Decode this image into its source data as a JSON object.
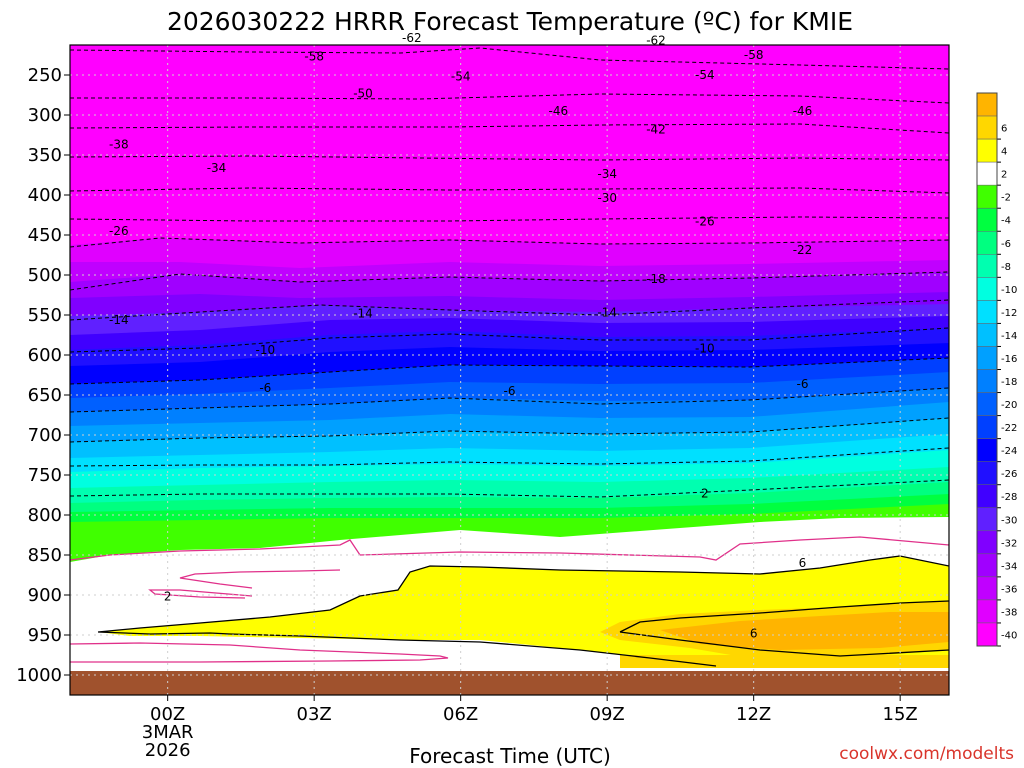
{
  "chart_data": {
    "type": "heatmap",
    "title": "2026030222 HRRR Forecast Temperature (ºC) for KMIE",
    "xlabel": "Forecast Time (UTC)",
    "ylabel": "",
    "credit": "coolwx.com/modelts",
    "x_ticks": [
      {
        "hour": 0,
        "label": "00Z",
        "sub": [
          "3MAR",
          "2026"
        ]
      },
      {
        "hour": 3,
        "label": "03Z"
      },
      {
        "hour": 6,
        "label": "06Z"
      },
      {
        "hour": 9,
        "label": "09Z"
      },
      {
        "hour": 12,
        "label": "12Z"
      },
      {
        "hour": 15,
        "label": "15Z"
      }
    ],
    "xlim": [
      -2,
      16
    ],
    "ylim": [
      1040,
      200
    ],
    "y_scale": "log-pressure",
    "y_ticks": [
      250,
      300,
      350,
      400,
      450,
      500,
      550,
      600,
      650,
      700,
      750,
      800,
      850,
      900,
      950,
      1000
    ],
    "color_levels": [
      {
        "label": "-40",
        "min": -99,
        "max": -40,
        "color": "#ff00ff"
      },
      {
        "label": "-38",
        "min": -40,
        "max": -38,
        "color": "#e000ff"
      },
      {
        "label": "-36",
        "min": -38,
        "max": -36,
        "color": "#c000ff"
      },
      {
        "label": "-34",
        "min": -36,
        "max": -34,
        "color": "#a000ff"
      },
      {
        "label": "-32",
        "min": -34,
        "max": -32,
        "color": "#8000ff"
      },
      {
        "label": "-30",
        "min": -32,
        "max": -30,
        "color": "#6020ff"
      },
      {
        "label": "-28",
        "min": -30,
        "max": -28,
        "color": "#4000ff"
      },
      {
        "label": "-26",
        "min": -28,
        "max": -26,
        "color": "#2010ff"
      },
      {
        "label": "-24",
        "min": -26,
        "max": -24,
        "color": "#0000ff"
      },
      {
        "label": "-22",
        "min": -24,
        "max": -22,
        "color": "#0040ff"
      },
      {
        "label": "-20",
        "min": -22,
        "max": -20,
        "color": "#0060ff"
      },
      {
        "label": "-18",
        "min": -20,
        "max": -18,
        "color": "#0080ff"
      },
      {
        "label": "-16",
        "min": -18,
        "max": -16,
        "color": "#00a0ff"
      },
      {
        "label": "-14",
        "min": -16,
        "max": -14,
        "color": "#00c0ff"
      },
      {
        "label": "-12",
        "min": -14,
        "max": -12,
        "color": "#00e0ff"
      },
      {
        "label": "-10",
        "min": -12,
        "max": -10,
        "color": "#00ffe0"
      },
      {
        "label": "-8",
        "min": -10,
        "max": -8,
        "color": "#00ffb0"
      },
      {
        "label": "-6",
        "min": -8,
        "max": -6,
        "color": "#00ff80"
      },
      {
        "label": "-4",
        "min": -6,
        "max": -4,
        "color": "#00ff40"
      },
      {
        "label": "-2",
        "min": -4,
        "max": -2,
        "color": "#40ff00"
      },
      {
        "label": "2",
        "min": -2,
        "max": 2,
        "color": "#ffffff"
      },
      {
        "label": "4",
        "min": 2,
        "max": 4,
        "color": "#ffff00"
      },
      {
        "label": "6",
        "min": 4,
        "max": 6,
        "color": "#ffd700"
      },
      {
        "label": "",
        "min": 6,
        "max": 99,
        "color": "#ffb400"
      }
    ],
    "contour_labels": [
      {
        "text": "-62",
        "hour": 5.0,
        "p": 204
      },
      {
        "text": "-62",
        "hour": 10.0,
        "p": 207
      },
      {
        "text": "-58",
        "hour": 3.0,
        "p": 227
      },
      {
        "text": "-58",
        "hour": 12.0,
        "p": 225
      },
      {
        "text": "-54",
        "hour": 6.0,
        "p": 252
      },
      {
        "text": "-54",
        "hour": 11.0,
        "p": 250
      },
      {
        "text": "-50",
        "hour": 4.0,
        "p": 273
      },
      {
        "text": "-46",
        "hour": 8.0,
        "p": 295
      },
      {
        "text": "-46",
        "hour": 13.0,
        "p": 295
      },
      {
        "text": "-42",
        "hour": 10.0,
        "p": 318
      },
      {
        "text": "-38",
        "hour": -1.0,
        "p": 337
      },
      {
        "text": "-34",
        "hour": 1.0,
        "p": 366
      },
      {
        "text": "-34",
        "hour": 9.0,
        "p": 374
      },
      {
        "text": "-30",
        "hour": 9.0,
        "p": 404
      },
      {
        "text": "-26",
        "hour": -1.0,
        "p": 445
      },
      {
        "text": "-26",
        "hour": 11.0,
        "p": 433
      },
      {
        "text": "-22",
        "hour": 13.0,
        "p": 469
      },
      {
        "text": "-18",
        "hour": 10.0,
        "p": 505
      },
      {
        "text": "-14",
        "hour": -1.0,
        "p": 556
      },
      {
        "text": "-14",
        "hour": 4.0,
        "p": 548
      },
      {
        "text": "-14",
        "hour": 9.0,
        "p": 547
      },
      {
        "text": "-10",
        "hour": 2.0,
        "p": 594
      },
      {
        "text": "-10",
        "hour": 11.0,
        "p": 592
      },
      {
        "text": "-6",
        "hour": 2.0,
        "p": 641
      },
      {
        "text": "-6",
        "hour": 7.0,
        "p": 645
      },
      {
        "text": "-6",
        "hour": 13.0,
        "p": 636
      },
      {
        "text": "2",
        "hour": 11.0,
        "p": 773
      },
      {
        "text": "2",
        "hour": 0.0,
        "p": 902
      },
      {
        "text": "6",
        "hour": 13.0,
        "p": 860
      },
      {
        "text": "6",
        "hour": 12.0,
        "p": 948
      }
    ]
  }
}
